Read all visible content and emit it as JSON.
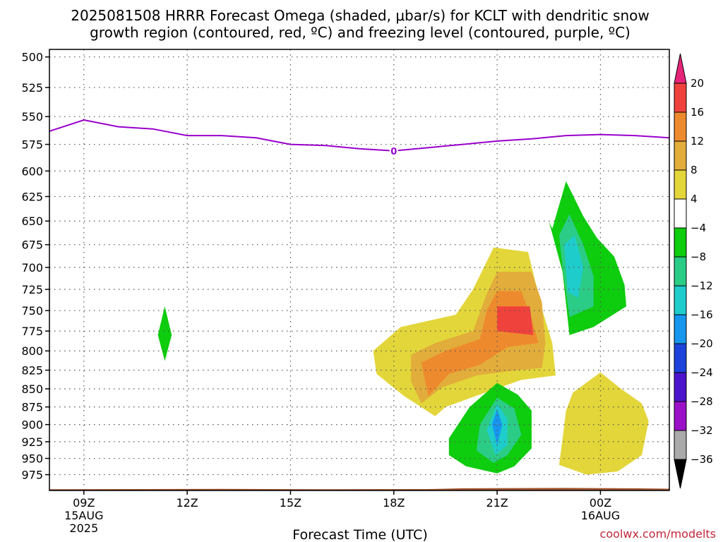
{
  "title": {
    "line1": "2025081508 HRRR Forecast Omega (shaded, μbar/s) for KCLT with dendritic snow",
    "line2": "growth region (contoured, red, ºC) and freezing level (contoured, purple, ºC)"
  },
  "credit": "coolwx.com/modelts",
  "chart_data": {
    "type": "heatmap",
    "xlabel": "Forecast Time (UTC)",
    "ylabel": "",
    "x_ticks": [
      {
        "hours": 1,
        "label": "09Z",
        "sub1": "15AUG",
        "sub2": "2025"
      },
      {
        "hours": 4,
        "label": "12Z",
        "sub1": "",
        "sub2": ""
      },
      {
        "hours": 7,
        "label": "15Z",
        "sub1": "",
        "sub2": ""
      },
      {
        "hours": 10,
        "label": "18Z",
        "sub1": "",
        "sub2": ""
      },
      {
        "hours": 13,
        "label": "21Z",
        "sub1": "",
        "sub2": ""
      },
      {
        "hours": 16,
        "label": "00Z",
        "sub1": "16AUG",
        "sub2": ""
      }
    ],
    "xlim_hours": [
      0,
      18
    ],
    "y_ticks_mb": [
      500,
      525,
      550,
      575,
      600,
      625,
      650,
      675,
      700,
      725,
      750,
      775,
      800,
      825,
      850,
      875,
      900,
      925,
      950,
      975
    ],
    "ylim_mb": [
      494,
      1000
    ],
    "grid": true,
    "colorbar": {
      "labels": [
        "20",
        "16",
        "12",
        "8",
        "4",
        "−4",
        "−8",
        "−12",
        "−16",
        "−20",
        "−24",
        "−28",
        "−32",
        "−36"
      ],
      "colors": [
        "#e8247a",
        "#f0423c",
        "#ee8a2e",
        "#e2ad3a",
        "#e3d63a",
        "#ffffff",
        "#0ecc0e",
        "#2bcc86",
        "#1fcccc",
        "#1796ee",
        "#1c44dc",
        "#4c14cc",
        "#9a11c8",
        "#aaaaaa",
        "#000000"
      ]
    },
    "freezing_level": {
      "label": "0",
      "color": "#9900cc",
      "points": [
        [
          0,
          563
        ],
        [
          1,
          553
        ],
        [
          2,
          559
        ],
        [
          3,
          561
        ],
        [
          4,
          567
        ],
        [
          5,
          567
        ],
        [
          6,
          569
        ],
        [
          7,
          575
        ],
        [
          8,
          576
        ],
        [
          9,
          579
        ],
        [
          10,
          581
        ],
        [
          11,
          578
        ],
        [
          12,
          575
        ],
        [
          13,
          572
        ],
        [
          14,
          570
        ],
        [
          15,
          567
        ],
        [
          16,
          566
        ],
        [
          17,
          567
        ],
        [
          18,
          569
        ]
      ]
    },
    "omega_regions": [
      {
        "value": -6,
        "color": "#0ecc0e",
        "points": [
          [
            3.35,
            745
          ],
          [
            3.55,
            780
          ],
          [
            3.35,
            813
          ],
          [
            3.15,
            780
          ]
        ]
      },
      {
        "value": 6,
        "color": "#e3d63a",
        "points": [
          [
            9.4,
            800
          ],
          [
            10.2,
            770
          ],
          [
            11.8,
            755
          ],
          [
            12.3,
            725
          ],
          [
            12.9,
            678
          ],
          [
            13.9,
            683
          ],
          [
            14.3,
            748
          ],
          [
            14.6,
            790
          ],
          [
            14.7,
            832
          ],
          [
            13.7,
            838
          ],
          [
            12.6,
            856
          ],
          [
            11.5,
            875
          ],
          [
            11.2,
            888
          ],
          [
            10.3,
            860
          ],
          [
            9.5,
            830
          ]
        ]
      },
      {
        "value": 10,
        "color": "#e2ad3a",
        "points": [
          [
            10.5,
            805
          ],
          [
            11.2,
            790
          ],
          [
            12.3,
            775
          ],
          [
            12.7,
            730
          ],
          [
            13.0,
            705
          ],
          [
            14.0,
            705
          ],
          [
            14.3,
            740
          ],
          [
            14.4,
            790
          ],
          [
            14.3,
            822
          ],
          [
            13.4,
            826
          ],
          [
            12.4,
            832
          ],
          [
            11.4,
            848
          ],
          [
            10.8,
            870
          ],
          [
            10.5,
            840
          ]
        ]
      },
      {
        "value": 14,
        "color": "#ee8a2e",
        "points": [
          [
            10.8,
            815
          ],
          [
            11.5,
            800
          ],
          [
            12.5,
            785
          ],
          [
            12.7,
            750
          ],
          [
            13.0,
            727
          ],
          [
            13.7,
            727
          ],
          [
            14.0,
            760
          ],
          [
            14.2,
            790
          ],
          [
            13.3,
            795
          ],
          [
            12.5,
            818
          ],
          [
            11.6,
            830
          ],
          [
            11.0,
            860
          ]
        ]
      },
      {
        "value": 18,
        "color": "#f0423c",
        "points": [
          [
            13.0,
            745
          ],
          [
            13.95,
            745
          ],
          [
            14.05,
            780
          ],
          [
            13.0,
            775
          ]
        ]
      },
      {
        "value": -6,
        "color": "#0ecc0e",
        "points": [
          [
            14.6,
            658
          ],
          [
            15.0,
            610
          ],
          [
            15.5,
            645
          ],
          [
            15.9,
            668
          ],
          [
            16.4,
            688
          ],
          [
            16.7,
            720
          ],
          [
            16.75,
            745
          ],
          [
            15.8,
            770
          ],
          [
            15.1,
            780
          ],
          [
            14.9,
            705
          ],
          [
            14.5,
            650
          ]
        ]
      },
      {
        "value": -10,
        "color": "#2bcc86",
        "points": [
          [
            14.8,
            665
          ],
          [
            15.1,
            643
          ],
          [
            15.5,
            675
          ],
          [
            15.8,
            710
          ],
          [
            15.8,
            745
          ],
          [
            15.1,
            758
          ],
          [
            14.9,
            700
          ]
        ]
      },
      {
        "value": -14,
        "color": "#1fcccc",
        "points": [
          [
            14.95,
            675
          ],
          [
            15.25,
            665
          ],
          [
            15.5,
            700
          ],
          [
            15.35,
            735
          ],
          [
            15.05,
            728
          ]
        ]
      },
      {
        "value": -6,
        "color": "#0ecc0e",
        "points": [
          [
            11.6,
            920
          ],
          [
            12.2,
            875
          ],
          [
            13.0,
            842
          ],
          [
            13.6,
            858
          ],
          [
            14.0,
            880
          ],
          [
            14.0,
            935
          ],
          [
            13.5,
            962
          ],
          [
            13.0,
            973
          ],
          [
            12.1,
            962
          ],
          [
            11.6,
            945
          ]
        ]
      },
      {
        "value": -10,
        "color": "#2bcc86",
        "points": [
          [
            12.5,
            900
          ],
          [
            13.0,
            862
          ],
          [
            13.5,
            877
          ],
          [
            13.7,
            915
          ],
          [
            13.3,
            945
          ],
          [
            12.9,
            957
          ],
          [
            12.4,
            938
          ]
        ]
      },
      {
        "value": -14,
        "color": "#1fcccc",
        "points": [
          [
            12.7,
            908
          ],
          [
            13.0,
            870
          ],
          [
            13.3,
            892
          ],
          [
            13.3,
            930
          ],
          [
            12.95,
            945
          ]
        ]
      },
      {
        "value": -18,
        "color": "#1796ee",
        "points": [
          [
            12.85,
            900
          ],
          [
            13.0,
            878
          ],
          [
            13.15,
            900
          ],
          [
            13.0,
            930
          ]
        ]
      },
      {
        "value": 6,
        "color": "#e3d63a",
        "points": [
          [
            15.0,
            880
          ],
          [
            15.2,
            855
          ],
          [
            16.0,
            828
          ],
          [
            16.6,
            850
          ],
          [
            17.2,
            870
          ],
          [
            17.4,
            895
          ],
          [
            17.2,
            945
          ],
          [
            16.5,
            970
          ],
          [
            15.6,
            975
          ],
          [
            14.8,
            960
          ],
          [
            14.9,
            920
          ]
        ]
      }
    ],
    "terrain": {
      "color": "#a0522d"
    }
  }
}
